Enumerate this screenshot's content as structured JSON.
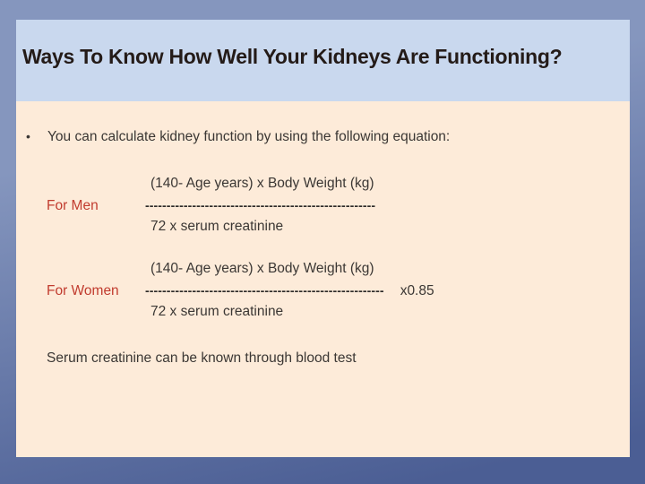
{
  "slide": {
    "title": "Ways To Know How Well Your Kidneys Are Functioning?",
    "bullet": {
      "marker": "•",
      "text": "You can calculate kidney function by using the following equation:"
    },
    "formulas": [
      {
        "label": "For Men",
        "numerator": "(140- Age years) x Body Weight (kg)",
        "divider": "------------------------------------------------------",
        "denominator": "72 x serum creatinine",
        "multiplier": ""
      },
      {
        "label": "For Women",
        "numerator": "(140- Age years) x Body Weight (kg)",
        "divider": "--------------------------------------------------------",
        "denominator": "72 x serum creatinine",
        "multiplier": "x0.85"
      }
    ],
    "note": "Serum creatinine can be known through blood test"
  },
  "colors": {
    "frame_top": "#8596be",
    "frame_bottom": "#4b5e94",
    "header_bg": "#c9d8ee",
    "content_bg": "#fdebd9",
    "title_text": "#241b18",
    "body_text": "#3b3734",
    "label_red": "#c13b2e",
    "dash_color": "#2c2a28"
  }
}
